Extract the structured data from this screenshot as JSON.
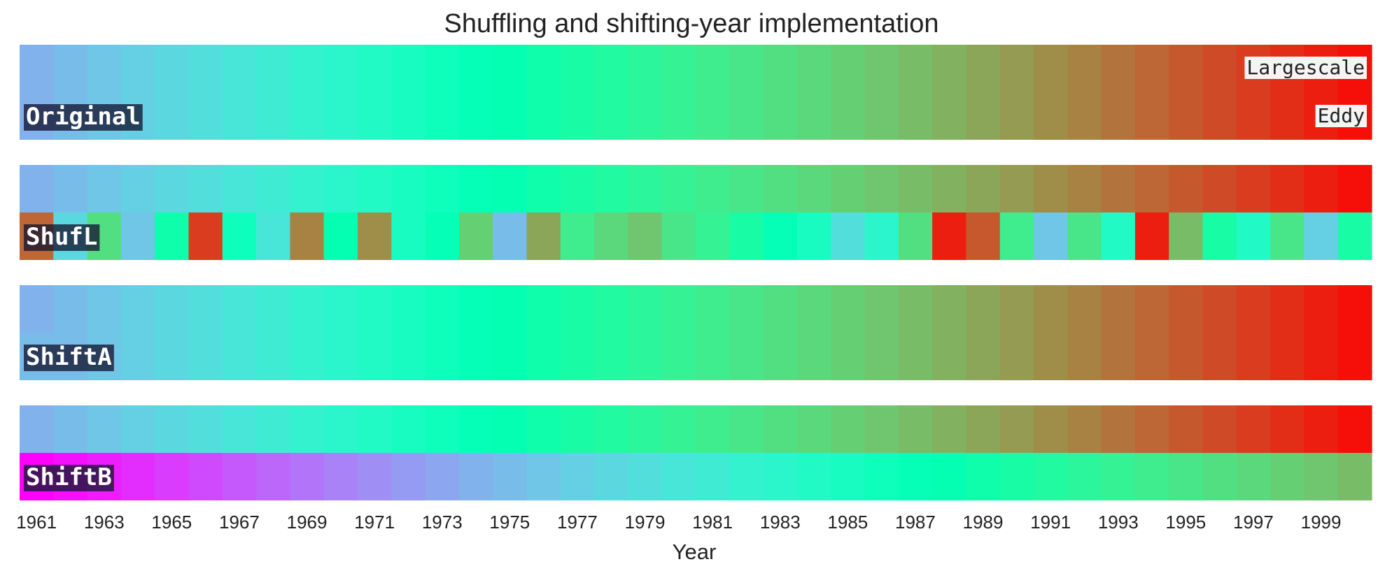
{
  "chart_data": {
    "type": "heatmap",
    "title": "Shuffling and shifting-year implementation",
    "xlabel": "Year",
    "x_tick_labels": [
      "1961",
      "1963",
      "1965",
      "1967",
      "1969",
      "1971",
      "1973",
      "1975",
      "1977",
      "1979",
      "1981",
      "1983",
      "1985",
      "1987",
      "1989",
      "1991",
      "1993",
      "1995",
      "1997",
      "1999"
    ],
    "years": [
      1961,
      1962,
      1963,
      1964,
      1965,
      1966,
      1967,
      1968,
      1969,
      1970,
      1971,
      1972,
      1973,
      1974,
      1975,
      1976,
      1977,
      1978,
      1979,
      1980,
      1981,
      1982,
      1983,
      1984,
      1985,
      1986,
      1987,
      1988,
      1989,
      1990,
      1991,
      1992,
      1993,
      1994,
      1995,
      1996,
      1997,
      1998,
      1999,
      2000
    ],
    "colormap": "rainbow",
    "annotations": {
      "top_row": "Largescale",
      "bottom_row": "Eddy"
    },
    "rows": [
      {
        "name": "Original",
        "largescale": [
          0,
          1,
          2,
          3,
          4,
          5,
          6,
          7,
          8,
          9,
          10,
          11,
          12,
          13,
          14,
          15,
          16,
          17,
          18,
          19,
          20,
          21,
          22,
          23,
          24,
          25,
          26,
          27,
          28,
          29,
          30,
          31,
          32,
          33,
          34,
          35,
          36,
          37,
          38,
          39
        ],
        "eddy": [
          0,
          1,
          2,
          3,
          4,
          5,
          6,
          7,
          8,
          9,
          10,
          11,
          12,
          13,
          14,
          15,
          16,
          17,
          18,
          19,
          20,
          21,
          22,
          23,
          24,
          25,
          26,
          27,
          28,
          29,
          30,
          31,
          32,
          33,
          34,
          35,
          36,
          37,
          38,
          39
        ]
      },
      {
        "name": "ShufL",
        "largescale": [
          0,
          1,
          2,
          3,
          4,
          5,
          6,
          7,
          8,
          9,
          10,
          11,
          12,
          13,
          14,
          15,
          16,
          17,
          18,
          19,
          20,
          21,
          22,
          23,
          24,
          25,
          26,
          27,
          28,
          29,
          30,
          31,
          32,
          33,
          34,
          35,
          36,
          37,
          38,
          39
        ],
        "eddy": [
          33,
          4,
          22,
          2,
          15,
          36,
          12,
          6,
          31,
          14,
          30,
          11,
          13,
          24,
          1,
          28,
          20,
          23,
          25,
          21,
          19,
          16,
          13,
          11,
          5,
          9,
          22,
          38,
          34,
          20,
          2,
          21,
          10,
          38,
          26,
          16,
          10,
          21,
          3,
          16
        ]
      },
      {
        "name": "ShiftA",
        "largescale": [
          0,
          1,
          2,
          3,
          4,
          5,
          6,
          7,
          8,
          9,
          10,
          11,
          12,
          13,
          14,
          15,
          16,
          17,
          18,
          19,
          20,
          21,
          22,
          23,
          24,
          25,
          26,
          27,
          28,
          29,
          30,
          31,
          32,
          33,
          34,
          35,
          36,
          37,
          38,
          39
        ],
        "eddy": [
          1,
          1,
          2,
          3,
          4,
          5,
          6,
          7,
          8,
          9,
          10,
          11,
          12,
          13,
          14,
          15,
          16,
          17,
          18,
          19,
          20,
          21,
          22,
          23,
          24,
          25,
          26,
          27,
          28,
          29,
          30,
          31,
          32,
          33,
          34,
          35,
          36,
          37,
          38,
          39
        ]
      },
      {
        "name": "ShiftB",
        "largescale": [
          0,
          1,
          2,
          3,
          4,
          5,
          6,
          7,
          8,
          9,
          10,
          11,
          12,
          13,
          14,
          15,
          16,
          17,
          18,
          19,
          20,
          21,
          22,
          23,
          24,
          25,
          26,
          27,
          28,
          29,
          30,
          31,
          32,
          33,
          34,
          35,
          36,
          37,
          38,
          39
        ],
        "eddy": [
          -13,
          -12,
          -11,
          -10,
          -9,
          -8,
          -7,
          -6,
          -5,
          -4,
          -3,
          -2,
          -1,
          0,
          1,
          2,
          3,
          4,
          5,
          6,
          7,
          8,
          9,
          10,
          11,
          12,
          13,
          14,
          15,
          16,
          17,
          18,
          19,
          20,
          21,
          22,
          23,
          24,
          25,
          26
        ]
      }
    ]
  }
}
